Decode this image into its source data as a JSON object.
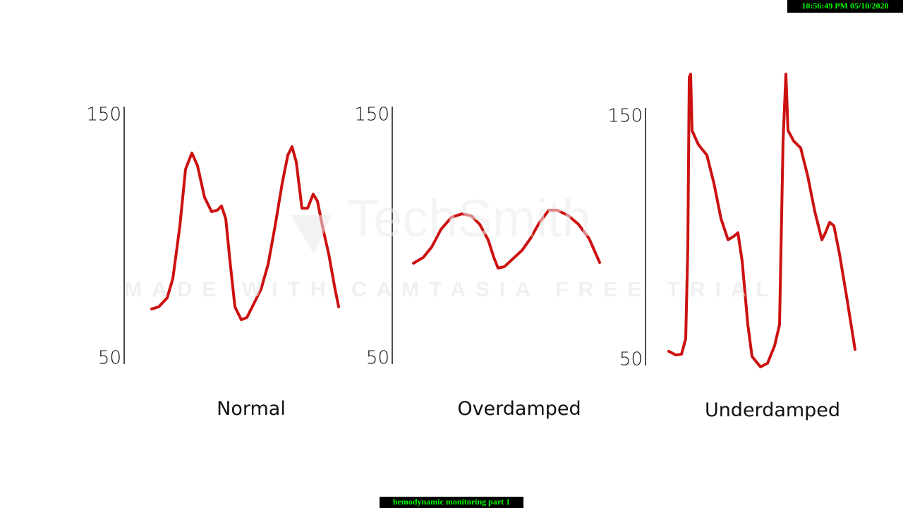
{
  "chart_data": [
    {
      "type": "line",
      "xlabel": "Normal",
      "xlim": [
        0,
        310
      ],
      "ylim": [
        50,
        150
      ],
      "yticks": [
        50,
        150
      ],
      "color": "#cc1111",
      "x": [
        39,
        49,
        61,
        69,
        79,
        87,
        96,
        104,
        114,
        124,
        132,
        138,
        144,
        150,
        157,
        166,
        174,
        184,
        194,
        204,
        214,
        224,
        232,
        238,
        244,
        252,
        260,
        268,
        274,
        282,
        290,
        298,
        304
      ],
      "values": [
        70.3,
        71.2,
        74.9,
        82.8,
        104.5,
        127.7,
        134.4,
        129.1,
        116.1,
        110.3,
        110.9,
        112.6,
        107.4,
        90.0,
        71.2,
        65.9,
        66.8,
        72.6,
        78.4,
        88.6,
        104.5,
        121.9,
        133.5,
        137.0,
        130.6,
        111.7,
        111.7,
        117.5,
        114.6,
        103.0,
        92.9,
        79.9,
        71.2
      ]
    },
    {
      "type": "line",
      "xlabel": "Overdamped",
      "xlim": [
        0,
        310
      ],
      "ylim": [
        50,
        150
      ],
      "yticks": [
        50,
        150
      ],
      "color": "#cc1111",
      "x": [
        30,
        44,
        56,
        69,
        84,
        99,
        112,
        124,
        136,
        144,
        150,
        159,
        172,
        184,
        196,
        209,
        222,
        234,
        249,
        264,
        279,
        294
      ],
      "values": [
        89.1,
        91.5,
        95.8,
        103.0,
        108.0,
        109.4,
        108.6,
        105.1,
        98.7,
        91.5,
        87.1,
        87.7,
        91.2,
        94.4,
        99.3,
        106.0,
        110.9,
        110.9,
        108.8,
        105.1,
        99.3,
        89.4
      ]
    },
    {
      "type": "line",
      "xlabel": "Underdamped",
      "xlim": [
        0,
        310
      ],
      "ylim": [
        50,
        150
      ],
      "yticks": [
        50,
        150
      ],
      "color": "#cc1111",
      "x": [
        33,
        43,
        51,
        57,
        60,
        62,
        64,
        66,
        75,
        87,
        97,
        107,
        117,
        125,
        131,
        137,
        145,
        151,
        163,
        173,
        183,
        190,
        195,
        199,
        202,
        210,
        220,
        230,
        240,
        250,
        255,
        261,
        267,
        275,
        285,
        297
      ],
      "values": [
        53.5,
        52.0,
        52.3,
        58.7,
        96.4,
        166.0,
        167.4,
        144.2,
        138.4,
        134.1,
        122.5,
        108.0,
        99.3,
        100.7,
        102.2,
        90.6,
        64.5,
        51.4,
        47.1,
        48.6,
        55.8,
        64.5,
        139.9,
        167.4,
        144.2,
        139.9,
        137.0,
        125.4,
        110.9,
        99.3,
        102.2,
        106.5,
        105.1,
        93.5,
        76.1,
        54.3
      ]
    }
  ],
  "timestamp": "10:56:49 PM 05/10/2020",
  "caption": "hemodynamic monitoring part 1",
  "watermark": {
    "logo": "TechSmith",
    "text": "MADE WITH CAMTASIA FREE TRIAL"
  }
}
